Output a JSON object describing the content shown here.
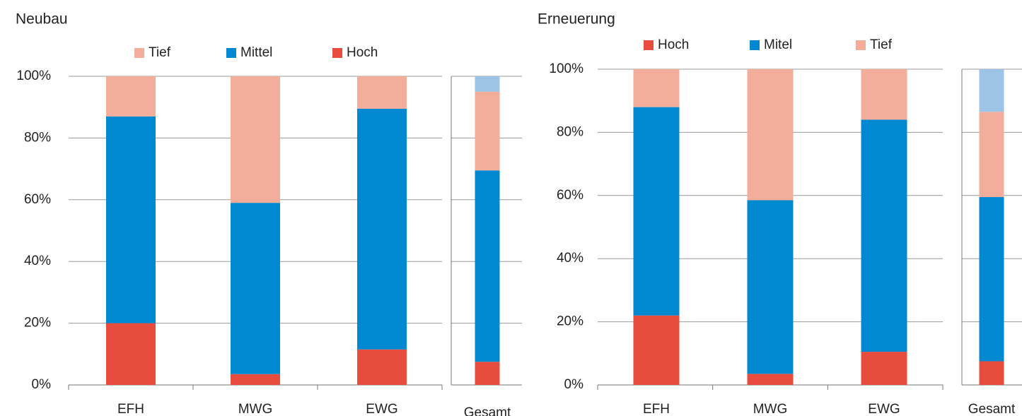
{
  "chart_data": [
    {
      "type": "stacked_bar",
      "title": "Neubau",
      "categories": [
        "EFH",
        "MWG",
        "EWG",
        "Gesamt"
      ],
      "series": [
        {
          "name": "Hoch",
          "color": "#e84c3d",
          "values": [
            20,
            3.5,
            11.5,
            7.5
          ]
        },
        {
          "name": "Mittel",
          "color": "#0088d1",
          "values": [
            67,
            55.5,
            78,
            62
          ]
        },
        {
          "name": "Tief",
          "color": "#f2ae9a",
          "values": [
            13,
            41,
            10.5,
            25.5
          ]
        },
        {
          "color": "#9dc3e6",
          "values": [
            null,
            null,
            null,
            5
          ]
        }
      ],
      "legend_order": [
        2,
        1,
        0
      ],
      "ylim": [
        0,
        100
      ],
      "yticks": [
        {
          "value": 0,
          "label": "0%"
        },
        {
          "value": 20,
          "label": "20%"
        },
        {
          "value": 40,
          "label": "40%"
        },
        {
          "value": 60,
          "label": "60%"
        },
        {
          "value": 80,
          "label": "80%"
        },
        {
          "value": 100,
          "label": "100%"
        }
      ],
      "grid": true
    },
    {
      "type": "stacked_bar",
      "title": "Erneuerung",
      "categories": [
        "EFH",
        "MWG",
        "EWG",
        "Gesamt"
      ],
      "series": [
        {
          "name": "Hoch",
          "color": "#e84c3d",
          "values": [
            22,
            3.5,
            10.5,
            7.5
          ]
        },
        {
          "name": "Mitel",
          "color": "#0088d1",
          "values": [
            66,
            55,
            73.5,
            52
          ]
        },
        {
          "name": "Tief",
          "color": "#f2ae9a",
          "values": [
            12,
            41.5,
            16,
            27
          ]
        },
        {
          "color": "#9dc3e6",
          "values": [
            null,
            null,
            null,
            13.5
          ]
        }
      ],
      "legend_order": [
        0,
        1,
        2
      ],
      "ylim": [
        0,
        100
      ],
      "yticks": [
        {
          "value": 0,
          "label": "0%"
        },
        {
          "value": 20,
          "label": "20%"
        },
        {
          "value": 40,
          "label": "40%"
        },
        {
          "value": 60,
          "label": "60%"
        },
        {
          "value": 80,
          "label": "80%"
        },
        {
          "value": 100,
          "label": "100%"
        }
      ],
      "grid": true
    }
  ]
}
